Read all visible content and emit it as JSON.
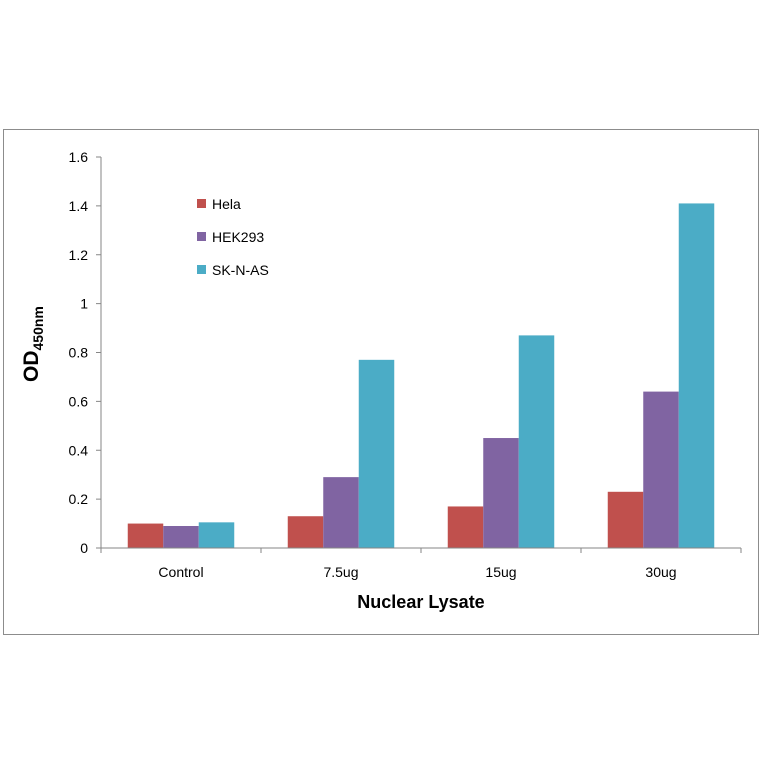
{
  "chart_data": {
    "type": "bar",
    "title": "",
    "xlabel": "Nuclear Lysate",
    "ylabel": "OD",
    "ylabel_subscript": "450nm",
    "categories": [
      "Control",
      "7.5ug",
      "15ug",
      "30ug"
    ],
    "series": [
      {
        "name": "Hela",
        "color": "#C0504D",
        "values": [
          0.1,
          0.13,
          0.17,
          0.23
        ]
      },
      {
        "name": "HEK293",
        "color": "#8064A2",
        "values": [
          0.09,
          0.29,
          0.45,
          0.64
        ]
      },
      {
        "name": "SK-N-AS",
        "color": "#4BACC6",
        "values": [
          0.105,
          0.77,
          0.87,
          1.41
        ]
      }
    ],
    "ylim": [
      0,
      1.6
    ],
    "yticks": [
      "0",
      "0.2",
      "0.4",
      "0.6",
      "0.8",
      "1",
      "1.2",
      "1.4",
      "1.6"
    ],
    "grid": false,
    "legend_position": "top-left"
  }
}
